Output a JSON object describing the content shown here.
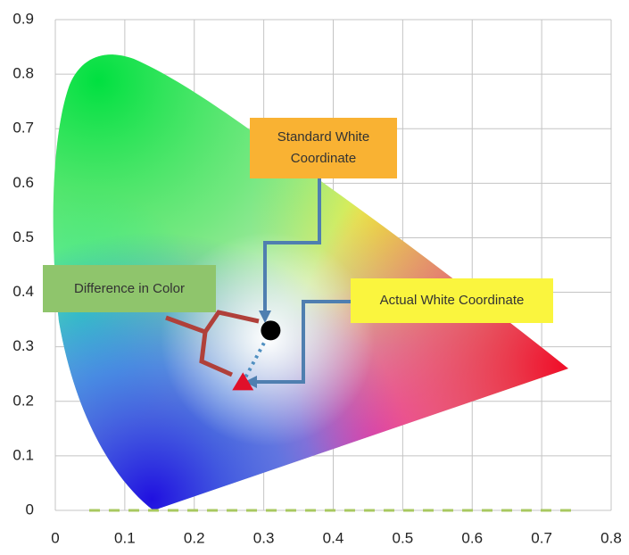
{
  "chart_data": {
    "type": "scatter",
    "xlim": [
      0,
      0.8
    ],
    "ylim": [
      0,
      0.9
    ],
    "xticks": [
      0,
      0.1,
      0.2,
      0.3,
      0.4,
      0.5,
      0.6,
      0.7,
      0.8
    ],
    "yticks": [
      0,
      0.1,
      0.2,
      0.3,
      0.4,
      0.5,
      0.6,
      0.7,
      0.8,
      0.9
    ],
    "grid": true,
    "points": [
      {
        "label": "Standard White Coordinate",
        "x": 0.31,
        "y": 0.33,
        "color": "#000000"
      },
      {
        "label": "Actual  White Coordinate",
        "x": 0.27,
        "y": 0.235,
        "color": "#e0102a"
      }
    ],
    "annotations": [
      "Difference in Color"
    ]
  }
}
